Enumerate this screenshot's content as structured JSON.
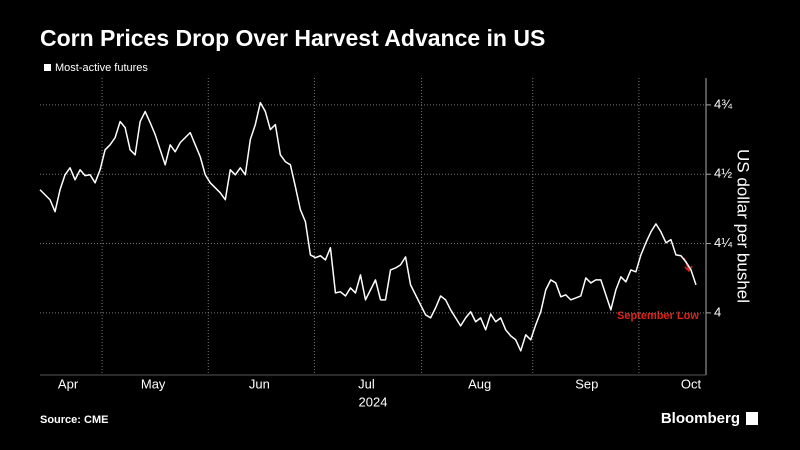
{
  "chart_data": {
    "type": "line",
    "title": "Corn Prices Drop Over Harvest Advance in US",
    "y_label": "US dollar per bushel",
    "x_label": "2024",
    "source": "Source: CME",
    "brand": "Bloomberg",
    "annotations": [
      "September Low"
    ],
    "series": [
      {
        "name": "Most-active futures",
        "color": "#ffffff",
        "values": [
          4.444,
          4.426,
          4.408,
          4.365,
          4.444,
          4.498,
          4.523,
          4.48,
          4.516,
          4.495,
          4.498,
          4.469,
          4.516,
          4.588,
          4.606,
          4.632,
          4.69,
          4.668,
          4.588,
          4.57,
          4.69,
          4.726,
          4.686,
          4.643,
          4.588,
          4.534,
          4.606,
          4.581,
          4.614,
          4.632,
          4.65,
          4.606,
          4.563,
          4.498,
          4.469,
          4.451,
          4.433,
          4.408,
          4.516,
          4.498,
          4.523,
          4.498,
          4.625,
          4.679,
          4.758,
          4.726,
          4.661,
          4.679,
          4.57,
          4.545,
          4.534,
          4.455,
          4.372,
          4.329,
          4.209,
          4.199,
          4.206,
          4.191,
          4.235,
          4.072,
          4.076,
          4.061,
          4.09,
          4.072,
          4.137,
          4.047,
          4.083,
          4.119,
          4.047,
          4.047,
          4.155,
          4.162,
          4.173,
          4.202,
          4.101,
          4.065,
          4.029,
          3.993,
          3.982,
          4.018,
          4.061,
          4.047,
          4.011,
          3.982,
          3.953,
          3.982,
          4.004,
          3.968,
          3.982,
          3.939,
          3.996,
          3.968,
          3.982,
          3.939,
          3.917,
          3.903,
          3.863,
          3.921,
          3.903,
          3.957,
          4.004,
          4.083,
          4.119,
          4.108,
          4.058,
          4.065,
          4.047,
          4.054,
          4.061,
          4.126,
          4.108,
          4.119,
          4.119,
          4.065,
          4.011,
          4.083,
          4.13,
          4.112,
          4.155,
          4.148,
          4.209,
          4.253,
          4.292,
          4.321,
          4.292,
          4.253,
          4.264,
          4.209,
          4.206,
          4.184,
          4.155,
          4.101
        ]
      }
    ],
    "xlim": [
      0,
      133
    ],
    "xticks": [
      {
        "value": 5.6,
        "label": "Apr"
      },
      {
        "value": 22.6,
        "label": "May"
      },
      {
        "value": 43.8,
        "label": "Jun"
      },
      {
        "value": 65.2,
        "label": "Jul"
      },
      {
        "value": 87.8,
        "label": "Aug"
      },
      {
        "value": 109.2,
        "label": "Sep"
      },
      {
        "value": 130,
        "label": "Oct"
      }
    ],
    "xgrid": [
      12.4,
      33.6,
      54.8,
      76.2,
      98.4,
      119.6
    ],
    "ylim": [
      3.776,
      4.847
    ],
    "yticks": [
      4,
      {
        "value": 4.25,
        "label": "4¼"
      },
      {
        "value": 4.5,
        "label": "4½"
      },
      {
        "value": 4.75,
        "label": "4¾"
      }
    ],
    "grid": true
  }
}
